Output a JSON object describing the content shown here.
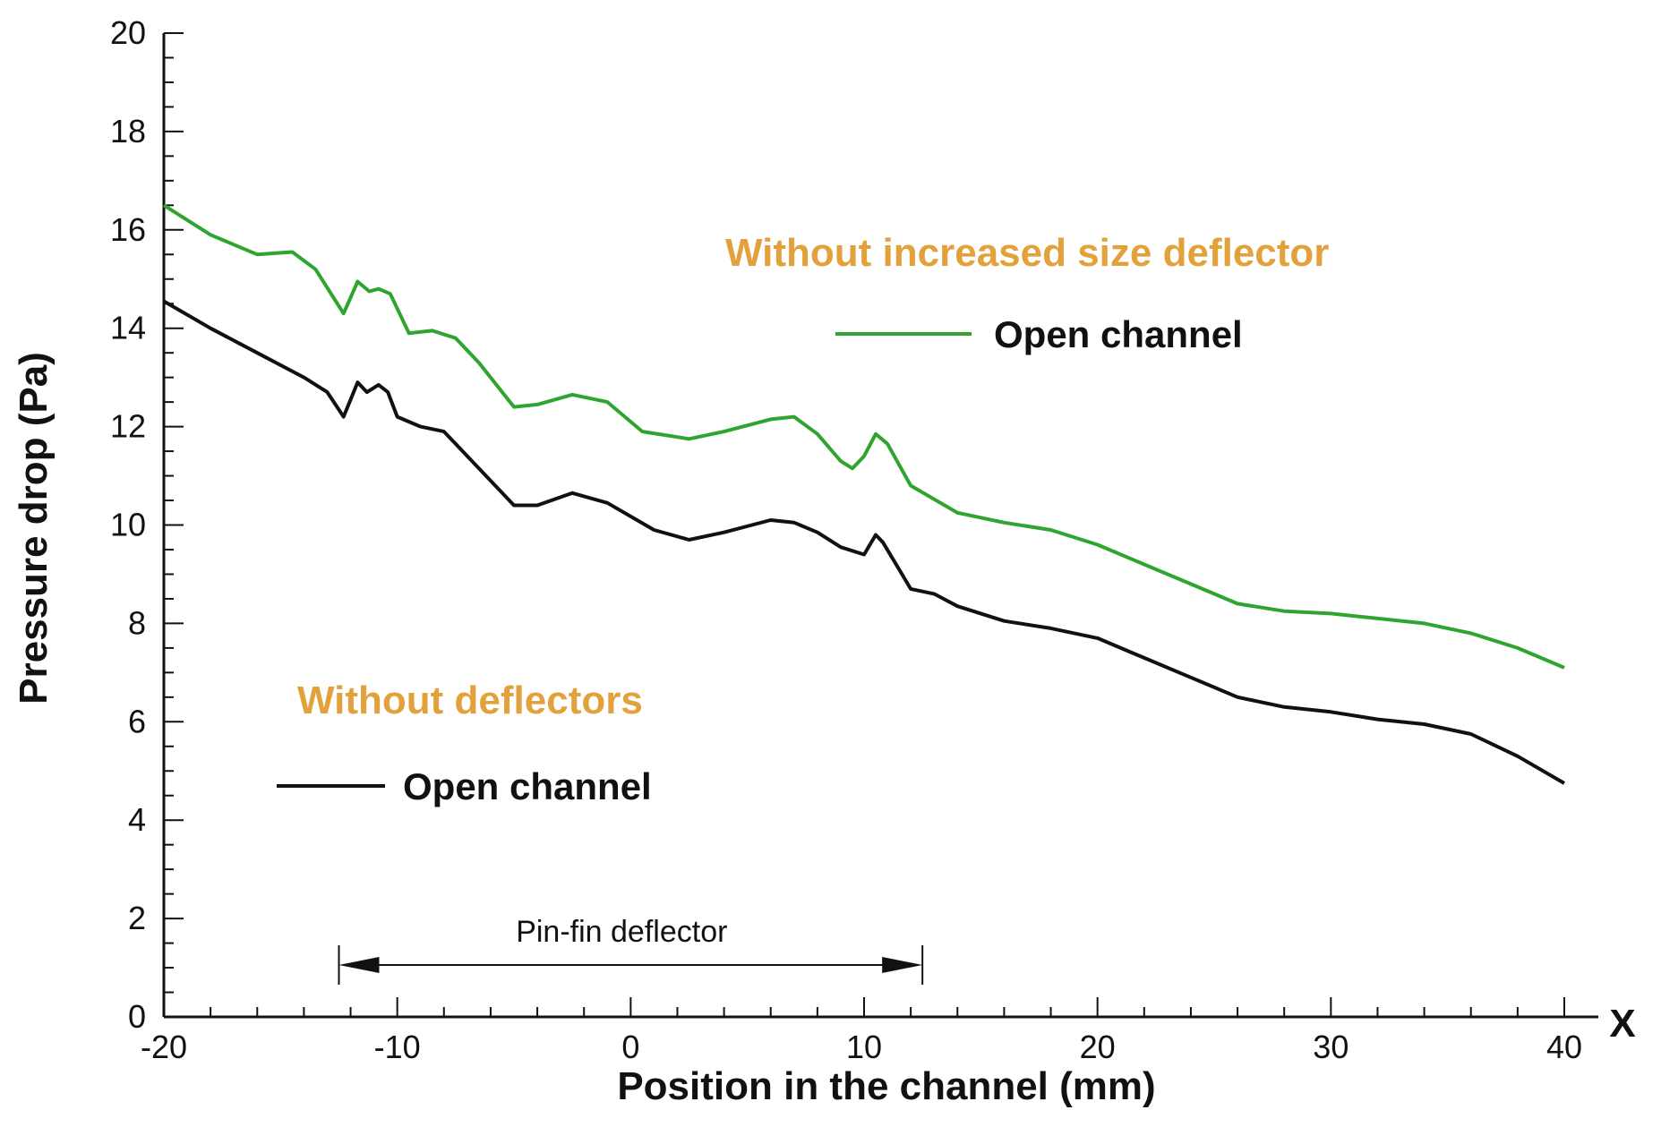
{
  "chart_data": {
    "type": "line",
    "title": "",
    "xlabel": "Position in the channel (mm)",
    "ylabel": "Pressure drop (Pa)",
    "axis_end_label": "X",
    "xlim": [
      -20,
      40
    ],
    "ylim": [
      0,
      20
    ],
    "xticks": [
      -20,
      -10,
      0,
      10,
      20,
      30,
      40
    ],
    "yticks": [
      0,
      2,
      4,
      6,
      8,
      10,
      12,
      14,
      16,
      18,
      20
    ],
    "xtick_labels": [
      "-20",
      "-10",
      "0",
      "10",
      "20",
      "30",
      "40"
    ],
    "ytick_labels": [
      "0",
      "2",
      "4",
      "6",
      "8",
      "10",
      "12",
      "14",
      "16",
      "18",
      "20"
    ],
    "grid": false,
    "series": [
      {
        "name": "Open channel",
        "group": "Without increased size deflector",
        "color": "#2fa52f",
        "x": [
          -20,
          -18,
          -16,
          -14.5,
          -13.5,
          -12.3,
          -11.7,
          -11.2,
          -10.8,
          -10.3,
          -9.5,
          -8.5,
          -7.5,
          -6.5,
          -5,
          -4,
          -2.5,
          -1,
          0.5,
          2.5,
          4,
          6,
          7,
          8,
          9,
          9.5,
          10,
          10.5,
          11,
          12,
          14,
          16,
          18,
          20,
          22,
          24,
          26,
          28,
          30,
          32,
          34,
          36,
          38,
          40
        ],
        "y": [
          16.5,
          15.9,
          15.5,
          15.55,
          15.2,
          14.3,
          14.95,
          14.75,
          14.8,
          14.7,
          13.9,
          13.95,
          13.8,
          13.3,
          12.4,
          12.45,
          12.65,
          12.5,
          11.9,
          11.75,
          11.9,
          12.15,
          12.2,
          11.85,
          11.3,
          11.15,
          11.4,
          11.85,
          11.65,
          10.8,
          10.25,
          10.05,
          9.9,
          9.6,
          9.2,
          8.8,
          8.4,
          8.25,
          8.2,
          8.1,
          8.0,
          7.8,
          7.5,
          7.1
        ]
      },
      {
        "name": "Open channel",
        "group": "Without deflectors",
        "color": "#111111",
        "x": [
          -20,
          -18,
          -16,
          -14,
          -13,
          -12.3,
          -11.7,
          -11.3,
          -10.8,
          -10.4,
          -10,
          -9,
          -8,
          -7,
          -6,
          -5,
          -4,
          -2.5,
          -1,
          1,
          2.5,
          4,
          6,
          7,
          8,
          9,
          10,
          10.5,
          10.8,
          11.5,
          12,
          13,
          14,
          16,
          18,
          20,
          22,
          24,
          26,
          28,
          30,
          32,
          34,
          36,
          38,
          40
        ],
        "y": [
          14.55,
          14.0,
          13.5,
          13.0,
          12.7,
          12.2,
          12.9,
          12.7,
          12.85,
          12.7,
          12.2,
          12.0,
          11.9,
          11.4,
          10.9,
          10.4,
          10.4,
          10.65,
          10.45,
          9.9,
          9.7,
          9.85,
          10.1,
          10.05,
          9.85,
          9.55,
          9.4,
          9.8,
          9.65,
          9.1,
          8.7,
          8.6,
          8.35,
          8.05,
          7.9,
          7.7,
          7.3,
          6.9,
          6.5,
          6.3,
          6.2,
          6.05,
          5.95,
          5.75,
          5.3,
          4.75
        ]
      }
    ],
    "legend": [
      {
        "title": "Without increased size deflector",
        "label": "Open channel",
        "color": "#2fa52f",
        "title_color": "#e3a13c"
      },
      {
        "title": "Without deflectors",
        "label": "Open channel",
        "color": "#111111",
        "title_color": "#e3a13c"
      }
    ],
    "annotations": [
      {
        "text": "Pin-fin deflector",
        "x_start": -12.5,
        "x_end": 12.5
      }
    ]
  }
}
